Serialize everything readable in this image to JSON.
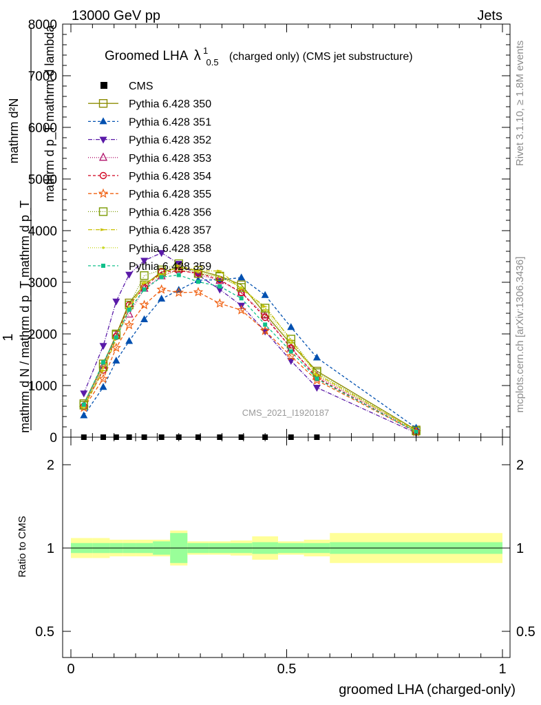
{
  "header": {
    "left": "13000 GeV pp",
    "right": "Jets"
  },
  "side": {
    "rivet": "Rivet 3.1.10, ≥ 1.8M events",
    "mcplots": "mcplots.cern.ch [arXiv:1306.3436]"
  },
  "title": {
    "main": "Groomed LHA",
    "lambda": "λ",
    "sup": "1",
    "sub": "0.5",
    "rest": "(charged only) (CMS jet substructure)"
  },
  "watermark": "CMS_2021_I1920187",
  "ylabel_top": {
    "frac_one": "1",
    "frac_den": "mathrm d N / mathrm d p_T mathrm d p_T",
    "num_top": "mathrm d²N",
    "num_den": "mathrm d p_T  mathrm d lambda"
  },
  "ylabel_bottom": "Ratio to CMS",
  "xlabel": "groomed LHA (charged-only)",
  "chart_data": [
    {
      "type": "line",
      "panel": "main",
      "xlim": [
        -0.02,
        1.0
      ],
      "ylim": [
        0,
        8000
      ],
      "yticks": [
        0,
        1000,
        2000,
        3000,
        4000,
        5000,
        6000,
        7000,
        8000
      ],
      "ytick_labels": [
        "0",
        "1000",
        "2000",
        "3000",
        "4000",
        "5000",
        "6000",
        "7000",
        "8000"
      ],
      "x": [
        0.03,
        0.075,
        0.105,
        0.135,
        0.17,
        0.21,
        0.25,
        0.295,
        0.345,
        0.395,
        0.45,
        0.51,
        0.57,
        0.8
      ],
      "cms": [
        0,
        0,
        0,
        0,
        0,
        0,
        0,
        0,
        0,
        0,
        0,
        0,
        0,
        null
      ],
      "series": [
        {
          "name": "Pythia 6.428 350",
          "color": "#8b8b00",
          "dash": "",
          "marker": "square-open",
          "values": [
            650,
            1420,
            1980,
            2600,
            2950,
            3200,
            3280,
            3230,
            3120,
            2950,
            2390,
            1800,
            1280,
            140
          ]
        },
        {
          "name": "Pythia 6.428 351",
          "color": "#0050b0",
          "dash": "4,3",
          "marker": "triangle-up",
          "values": [
            420,
            970,
            1480,
            1860,
            2280,
            2680,
            2850,
            3040,
            3050,
            3090,
            2750,
            2130,
            1540,
            180
          ]
        },
        {
          "name": "Pythia 6.428 352",
          "color": "#5a1aa8",
          "dash": "6,2,1,2",
          "marker": "triangle-down",
          "values": [
            850,
            1770,
            2630,
            3150,
            3420,
            3570,
            3360,
            3140,
            2860,
            2550,
            2050,
            1480,
            960,
            80
          ]
        },
        {
          "name": "Pythia 6.428 353",
          "color": "#b0106a",
          "dash": "1,2",
          "marker": "triangle-open",
          "values": [
            600,
            1390,
            1980,
            2380,
            2880,
            3120,
            3250,
            3150,
            3030,
            2800,
            2360,
            1720,
            1180,
            110
          ]
        },
        {
          "name": "Pythia 6.428 354",
          "color": "#d0001e",
          "dash": "4,3",
          "marker": "circle-open",
          "values": [
            600,
            1300,
            1950,
            2560,
            2900,
            3200,
            3220,
            3180,
            3050,
            2800,
            2320,
            1730,
            1150,
            100
          ]
        },
        {
          "name": "Pythia 6.428 355",
          "color": "#f06010",
          "dash": "5,3",
          "marker": "star-open",
          "values": [
            570,
            1130,
            1730,
            2170,
            2560,
            2860,
            2800,
            2810,
            2590,
            2460,
            2060,
            1570,
            1100,
            100
          ]
        },
        {
          "name": "Pythia 6.428 356",
          "color": "#7a9a00",
          "dash": "1,2",
          "marker": "square-open",
          "values": [
            620,
            1360,
            2000,
            2560,
            3130,
            3240,
            3360,
            3170,
            3110,
            2900,
            2500,
            1900,
            1250,
            120
          ]
        },
        {
          "name": "Pythia 6.428 357",
          "color": "#c8c000",
          "dash": "6,2,1,2",
          "marker": "arrow",
          "values": [
            580,
            1290,
            1900,
            2490,
            2980,
            3150,
            3320,
            3220,
            3220,
            2870,
            2530,
            1880,
            1220,
            125
          ]
        },
        {
          "name": "Pythia 6.428 358",
          "color": "#c8d820",
          "dash": "1,2",
          "marker": "dot",
          "values": [
            600,
            1340,
            1950,
            2520,
            3000,
            3120,
            3240,
            3200,
            3100,
            2900,
            2460,
            1830,
            1200,
            120
          ]
        },
        {
          "name": "Pythia 6.428 359",
          "color": "#10c08a",
          "dash": "4,3",
          "marker": "square",
          "values": [
            630,
            1450,
            1930,
            2470,
            2860,
            3100,
            3140,
            3010,
            2920,
            2690,
            2180,
            1660,
            1130,
            105
          ]
        }
      ]
    },
    {
      "type": "area",
      "panel": "ratio",
      "xlim": [
        -0.02,
        1.0
      ],
      "ylim": [
        0.4,
        2.3
      ],
      "yticks": [
        0.5,
        1,
        2
      ],
      "ytick_labels": [
        "0.5",
        "1",
        "2"
      ],
      "xticks": [
        0,
        0.5,
        1
      ],
      "xtick_labels": [
        "0",
        "0.5",
        "1"
      ],
      "bin_edges": [
        0.0,
        0.05,
        0.09,
        0.12,
        0.15,
        0.19,
        0.23,
        0.27,
        0.32,
        0.37,
        0.42,
        0.48,
        0.54,
        0.6,
        1.0
      ],
      "stat_band": [
        0.03,
        0.03,
        0.03,
        0.03,
        0.03,
        0.04,
        0.09,
        0.03,
        0.03,
        0.03,
        0.035,
        0.03,
        0.03,
        0.035
      ],
      "total_band": [
        0.06,
        0.06,
        0.05,
        0.05,
        0.05,
        0.05,
        0.105,
        0.04,
        0.04,
        0.045,
        0.07,
        0.04,
        0.05,
        0.09
      ],
      "reference": 1.0
    }
  ]
}
